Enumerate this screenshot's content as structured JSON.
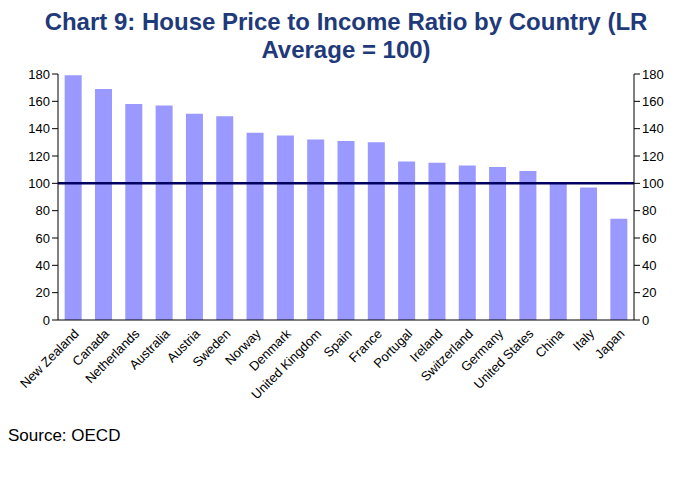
{
  "chart_data": {
    "type": "bar",
    "title": "Chart 9: House Price to Income Ratio by Country (LR Average = 100)",
    "source": "Source: OECD",
    "categories": [
      "New Zealand",
      "Canada",
      "Netherlands",
      "Australia",
      "Austria",
      "Sweden",
      "Norway",
      "Denmark",
      "United Kingdom",
      "Spain",
      "France",
      "Portugal",
      "Ireland",
      "Switzerland",
      "Germany",
      "United States",
      "China",
      "Italy",
      "Japan"
    ],
    "values": [
      179,
      169,
      158,
      157,
      151,
      149,
      137,
      135,
      132,
      131,
      130,
      116,
      115,
      113,
      112,
      109,
      101,
      97,
      74
    ],
    "color": "#9999ff",
    "reference_line": 100,
    "ylim": [
      0,
      180
    ],
    "yticks": [
      0,
      20,
      40,
      60,
      80,
      100,
      120,
      140,
      160,
      180
    ],
    "y2lim": [
      0,
      180
    ],
    "y2ticks": [
      0,
      20,
      40,
      60,
      80,
      100,
      120,
      140,
      160,
      180
    ],
    "grid": false
  }
}
